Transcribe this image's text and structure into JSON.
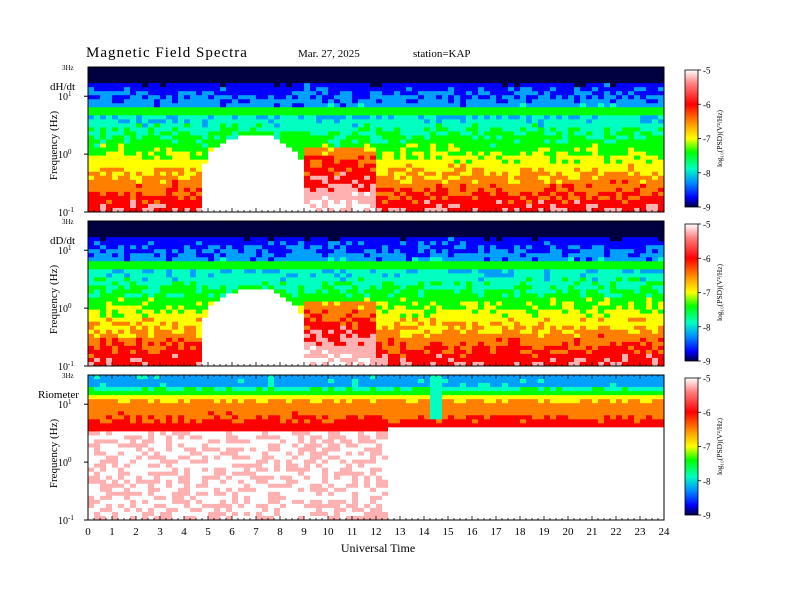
{
  "header": {
    "title": "Magnetic  Field  Spectra",
    "date": "Mar. 27, 2025",
    "station": "station=KAP"
  },
  "colors": {
    "frame": "#000000",
    "background": "#ffffff",
    "colormap": [
      "#000040",
      "#0000ff",
      "#00a0ff",
      "#00ffc0",
      "#00ff00",
      "#ffff00",
      "#ff8000",
      "#ff0000",
      "#ffb0b0",
      "#ffffff"
    ]
  },
  "chart_data": [
    {
      "type": "heatmap",
      "panel_label": "dH/dt",
      "ylabel": "Frequency  (Hz)",
      "y_top_label": "3Hz",
      "y_ticks": [
        {
          "value": 0.1,
          "base": "10",
          "exp": "-1"
        },
        {
          "value": 1,
          "base": "10",
          "exp": "0"
        },
        {
          "value": 10,
          "base": "10",
          "exp": "1"
        }
      ],
      "y_scale": "log",
      "ylim": [
        0.1,
        32
      ],
      "xlim": [
        0,
        24
      ],
      "colorbar": {
        "label": "log₁₀(PSD)(V²/Hz)",
        "range": [
          -9,
          -5
        ],
        "ticks": [
          "-5",
          "-6",
          "-7",
          "-8",
          "-9"
        ]
      },
      "features": {
        "quiet_interval_hours": [
          4.8,
          9.0
        ],
        "quiet_peak_hz": 2.5,
        "line_hz": 7.5
      }
    },
    {
      "type": "heatmap",
      "panel_label": "dD/dt",
      "ylabel": "Frequency  (Hz)",
      "y_top_label": "3Hz",
      "y_ticks": [
        {
          "value": 0.1,
          "base": "10",
          "exp": "-1"
        },
        {
          "value": 1,
          "base": "10",
          "exp": "0"
        },
        {
          "value": 10,
          "base": "10",
          "exp": "1"
        }
      ],
      "y_scale": "log",
      "ylim": [
        0.1,
        32
      ],
      "xlim": [
        0,
        24
      ],
      "colorbar": {
        "label": "log₁₀(PSD)(V²/Hz)",
        "range": [
          -9,
          -5
        ],
        "ticks": [
          "-5",
          "-6",
          "-7",
          "-8",
          "-9"
        ]
      },
      "features": {
        "quiet_interval_hours": [
          4.8,
          9.0
        ],
        "quiet_peak_hz": 2.5,
        "line_hz": 7.5
      }
    },
    {
      "type": "heatmap",
      "panel_label": "Riometer",
      "ylabel": "Frequency  (Hz)",
      "y_top_label": "3Hz",
      "y_ticks": [
        {
          "value": 0.1,
          "base": "10",
          "exp": "-1"
        },
        {
          "value": 1,
          "base": "10",
          "exp": "0"
        },
        {
          "value": 10,
          "base": "10",
          "exp": "1"
        }
      ],
      "y_scale": "log",
      "ylim": [
        0.1,
        32
      ],
      "xlim": [
        0,
        24
      ],
      "xlabel": "Universal  Time",
      "x_ticks": [
        "0",
        "1",
        "2",
        "3",
        "4",
        "5",
        "6",
        "7",
        "8",
        "9",
        "10",
        "11",
        "12",
        "13",
        "14",
        "15",
        "16",
        "17",
        "18",
        "19",
        "20",
        "21",
        "22",
        "23",
        "24"
      ],
      "colorbar": {
        "label": "log₁₀(PSD)(V²/Hz)",
        "range": [
          -9,
          -5
        ],
        "ticks": [
          "-5",
          "-6",
          "-7",
          "-8",
          "-9"
        ]
      },
      "features": {
        "noise_end_hours": 12.5,
        "spike_hours": 14.4
      }
    }
  ]
}
